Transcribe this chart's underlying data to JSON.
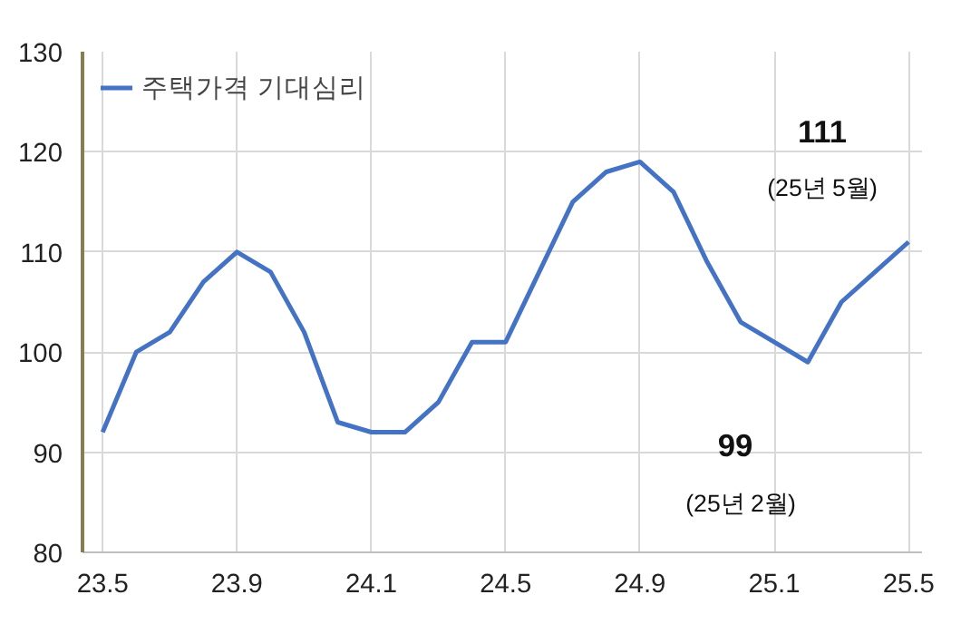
{
  "chart_data": {
    "type": "line",
    "categories": [
      "23.5",
      null,
      null,
      null,
      "23.9",
      null,
      null,
      null,
      "24.1",
      null,
      null,
      null,
      "24.5",
      null,
      null,
      null,
      "24.9",
      null,
      null,
      null,
      "25.1",
      null,
      null,
      null,
      "25.5"
    ],
    "series": [
      {
        "name": "주택가격 기대심리",
        "color": "#4472c4",
        "values": [
          92,
          100,
          102,
          107,
          110,
          108,
          102,
          93,
          92,
          92,
          95,
          101,
          101,
          108,
          115,
          118,
          119,
          116,
          109,
          103,
          101,
          99,
          105,
          108,
          111
        ]
      }
    ],
    "ylim": [
      80,
      130
    ],
    "yticks": [
      80,
      90,
      100,
      110,
      120,
      130
    ],
    "grid": true,
    "legend": "top left",
    "marker": "none",
    "line_style": "solid",
    "annotations": [
      "111",
      "(25년 5월)",
      "99",
      "(25년 2월)"
    ]
  }
}
